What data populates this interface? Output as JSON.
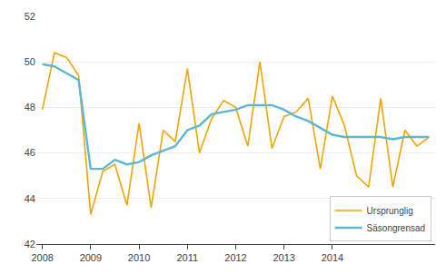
{
  "chart_data": {
    "type": "line",
    "categories": [
      "2008",
      null,
      null,
      null,
      "2009",
      null,
      null,
      null,
      "2010",
      null,
      null,
      null,
      "2011",
      null,
      null,
      null,
      "2012",
      null,
      null,
      null,
      "2013",
      null,
      null,
      null,
      "2014",
      null,
      null,
      null,
      null,
      null,
      null,
      null,
      null
    ],
    "series": [
      {
        "name": "Ursprunglig",
        "color": "#f0a500",
        "values": [
          47.9,
          50.4,
          50.2,
          49.4,
          43.3,
          45.2,
          45.5,
          43.7,
          47.3,
          43.6,
          47.0,
          46.5,
          49.7,
          46.0,
          47.5,
          48.3,
          48.0,
          46.3,
          50.0,
          46.2,
          47.6,
          47.8,
          48.4,
          45.3,
          48.5,
          47.2,
          45.0,
          44.5,
          48.4,
          44.5,
          47.0,
          46.3,
          46.7
        ]
      },
      {
        "name": "Säsongrensad",
        "color": "#5bb8d4",
        "values": [
          49.9,
          49.8,
          49.5,
          49.2,
          45.3,
          45.3,
          45.7,
          45.5,
          45.6,
          45.9,
          46.1,
          46.3,
          47.0,
          47.2,
          47.7,
          47.8,
          47.9,
          48.1,
          48.1,
          48.1,
          47.9,
          47.6,
          47.4,
          47.1,
          46.8,
          46.7,
          46.7,
          46.7,
          46.7,
          46.6,
          46.7,
          46.7,
          46.7
        ]
      }
    ],
    "ylim": [
      42,
      52
    ],
    "yticks": [
      42,
      44,
      46,
      48,
      50,
      52
    ],
    "grid": true,
    "legend": "lower right"
  }
}
